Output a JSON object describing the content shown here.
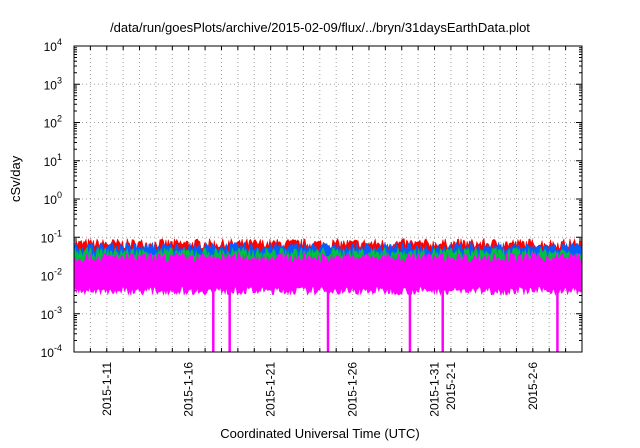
{
  "chart_data": {
    "type": "line",
    "title": "/data/run/goesPlots/archive/2015-02-09/flux/../bryn/31daysEarthData.plot",
    "xlabel": "Coordinated Universal Time (UTC)",
    "ylabel": "cSv/day",
    "yscale": "log",
    "ylim": [
      0.0001,
      10000
    ],
    "xlim": [
      "2015-01-09",
      "2015-02-09"
    ],
    "grid": true,
    "y_ticks": [
      {
        "base": "10",
        "exp": "-4"
      },
      {
        "base": "10",
        "exp": "-3"
      },
      {
        "base": "10",
        "exp": "-2"
      },
      {
        "base": "10",
        "exp": "-1"
      },
      {
        "base": "10",
        "exp": "0"
      },
      {
        "base": "10",
        "exp": "1"
      },
      {
        "base": "10",
        "exp": "2"
      },
      {
        "base": "10",
        "exp": "3"
      },
      {
        "base": "10",
        "exp": "4"
      }
    ],
    "x_ticks": [
      "2015-1-11",
      "2015-1-16",
      "2015-1-21",
      "2015-1-26",
      "2015-1-31",
      "2015-2-1",
      "2015-2-6"
    ],
    "series": [
      {
        "color": "#ff0000",
        "upper": 0.065,
        "lower": 0.03
      },
      {
        "color": "#0060ff",
        "upper": 0.052,
        "lower": 0.022
      },
      {
        "color": "#00c040",
        "upper": 0.038,
        "lower": 0.016
      },
      {
        "color": "#ff00ff",
        "upper": 0.028,
        "lower": 0.004
      }
    ],
    "dropouts": [
      "2015-01-17",
      "2015-01-18",
      "2015-01-24",
      "2015-01-29",
      "2015-01-31",
      "2015-02-07"
    ],
    "dropout_value": 0.0001
  }
}
